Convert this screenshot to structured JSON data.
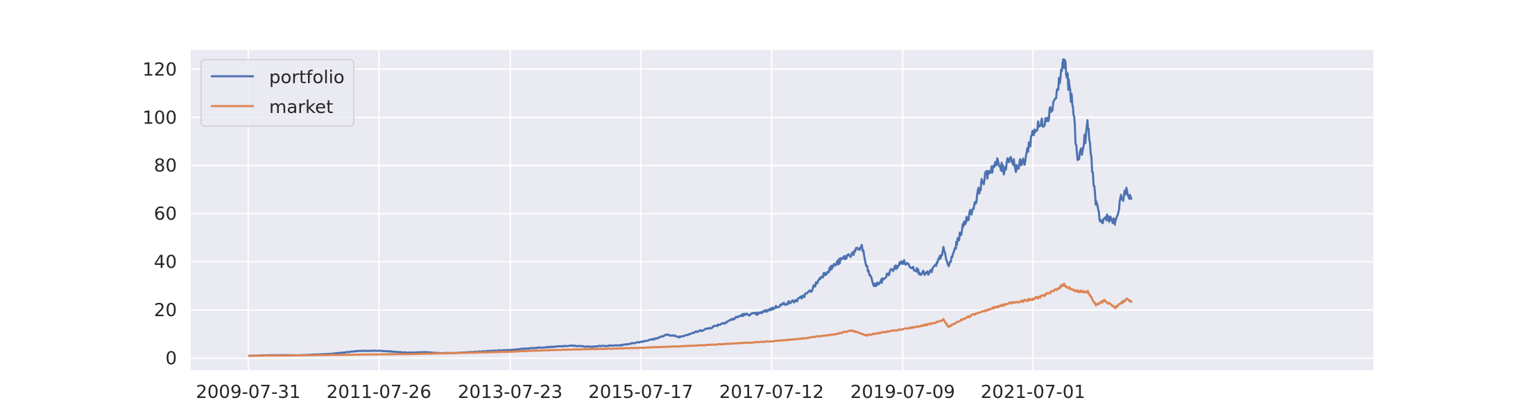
{
  "chart_data": {
    "type": "line",
    "title": "",
    "xlabel": "",
    "ylabel": "",
    "grid": true,
    "legend_position": "top-left",
    "ylim": [
      -5,
      128
    ],
    "xlim": [
      "2008-09-15",
      "2026-09-01"
    ],
    "x_ticks": [
      "2009-07-31",
      "2011-07-26",
      "2013-07-23",
      "2015-07-17",
      "2017-07-12",
      "2019-07-09",
      "2021-07-01"
    ],
    "y_ticks": [
      0,
      20,
      40,
      60,
      80,
      100,
      120
    ],
    "colors": {
      "background": "#eaeaf2",
      "grid": "#ffffff",
      "portfolio": "#4c72b0",
      "market": "#dd8452"
    },
    "series": [
      {
        "name": "portfolio",
        "color": "#4c72b0",
        "points": [
          [
            "2009-07-31",
            1.0
          ],
          [
            "2009-11-01",
            1.2
          ],
          [
            "2010-02-01",
            1.3
          ],
          [
            "2010-05-01",
            1.2
          ],
          [
            "2010-08-01",
            1.5
          ],
          [
            "2010-11-01",
            1.8
          ],
          [
            "2011-01-15",
            2.4
          ],
          [
            "2011-04-01",
            3.0
          ],
          [
            "2011-07-26",
            3.1
          ],
          [
            "2011-10-01",
            2.8
          ],
          [
            "2012-01-01",
            2.3
          ],
          [
            "2012-04-01",
            2.5
          ],
          [
            "2012-07-01",
            2.1
          ],
          [
            "2012-10-01",
            2.2
          ],
          [
            "2013-01-01",
            2.6
          ],
          [
            "2013-04-01",
            3.0
          ],
          [
            "2013-07-23",
            3.4
          ],
          [
            "2013-10-01",
            3.9
          ],
          [
            "2014-01-01",
            4.4
          ],
          [
            "2014-04-01",
            4.8
          ],
          [
            "2014-07-01",
            5.2
          ],
          [
            "2014-10-01",
            4.8
          ],
          [
            "2015-01-01",
            5.1
          ],
          [
            "2015-04-01",
            5.4
          ],
          [
            "2015-07-17",
            6.8
          ],
          [
            "2015-10-01",
            8.0
          ],
          [
            "2015-12-15",
            9.8
          ],
          [
            "2016-02-15",
            8.8
          ],
          [
            "2016-05-01",
            10.5
          ],
          [
            "2016-08-01",
            12.5
          ],
          [
            "2016-11-01",
            15.0
          ],
          [
            "2017-02-01",
            18.0
          ],
          [
            "2017-05-01",
            18.5
          ],
          [
            "2017-07-12",
            20.5
          ],
          [
            "2017-09-15",
            22.5
          ],
          [
            "2017-12-01",
            24.0
          ],
          [
            "2018-02-15",
            28.0
          ],
          [
            "2018-04-15",
            34.0
          ],
          [
            "2018-06-15",
            38.0
          ],
          [
            "2018-08-15",
            41.5
          ],
          [
            "2018-10-15",
            44.0
          ],
          [
            "2018-11-25",
            46.5
          ],
          [
            "2018-12-20",
            38.0
          ],
          [
            "2019-02-01",
            30.0
          ],
          [
            "2019-03-15",
            32.0
          ],
          [
            "2019-05-01",
            36.0
          ],
          [
            "2019-07-09",
            40.0
          ],
          [
            "2019-09-01",
            38.0
          ],
          [
            "2019-10-15",
            35.5
          ],
          [
            "2019-12-01",
            35.0
          ],
          [
            "2020-01-15",
            39.0
          ],
          [
            "2020-02-20",
            45.0
          ],
          [
            "2020-03-20",
            38.0
          ],
          [
            "2020-05-01",
            47.0
          ],
          [
            "2020-06-15",
            56.0
          ],
          [
            "2020-08-01",
            62.0
          ],
          [
            "2020-09-15",
            72.0
          ],
          [
            "2020-11-01",
            78.0
          ],
          [
            "2020-12-15",
            81.0
          ],
          [
            "2021-01-20",
            78.0
          ],
          [
            "2021-02-20",
            84.0
          ],
          [
            "2021-04-01",
            79.0
          ],
          [
            "2021-05-15",
            82.0
          ],
          [
            "2021-07-01",
            94.0
          ],
          [
            "2021-08-15",
            97.0
          ],
          [
            "2021-10-01",
            102.0
          ],
          [
            "2021-11-10",
            110.0
          ],
          [
            "2021-12-20",
            124.0
          ],
          [
            "2022-01-15",
            113.0
          ],
          [
            "2022-02-10",
            103.0
          ],
          [
            "2022-03-01",
            84.0
          ],
          [
            "2022-04-01",
            86.0
          ],
          [
            "2022-05-01",
            97.0
          ],
          [
            "2022-06-15",
            64.0
          ],
          [
            "2022-07-15",
            56.0
          ],
          [
            "2022-08-15",
            59.0
          ],
          [
            "2022-10-01",
            56.0
          ],
          [
            "2022-11-01",
            66.0
          ],
          [
            "2022-12-01",
            69.0
          ],
          [
            "2023-01-01",
            66.0
          ]
        ]
      },
      {
        "name": "market",
        "color": "#dd8452",
        "points": [
          [
            "2009-07-31",
            1.0
          ],
          [
            "2010-01-01",
            1.1
          ],
          [
            "2010-07-01",
            1.2
          ],
          [
            "2011-01-01",
            1.4
          ],
          [
            "2011-07-26",
            1.6
          ],
          [
            "2012-01-01",
            1.7
          ],
          [
            "2012-07-01",
            2.0
          ],
          [
            "2013-01-01",
            2.3
          ],
          [
            "2013-07-23",
            2.7
          ],
          [
            "2014-01-01",
            3.2
          ],
          [
            "2014-07-01",
            3.6
          ],
          [
            "2015-01-01",
            3.9
          ],
          [
            "2015-07-17",
            4.3
          ],
          [
            "2016-01-01",
            4.8
          ],
          [
            "2016-07-01",
            5.4
          ],
          [
            "2017-01-01",
            6.2
          ],
          [
            "2017-07-12",
            7.0
          ],
          [
            "2018-01-01",
            8.2
          ],
          [
            "2018-07-01",
            10.0
          ],
          [
            "2018-10-01",
            11.5
          ],
          [
            "2018-12-20",
            9.5
          ],
          [
            "2019-03-01",
            10.5
          ],
          [
            "2019-07-09",
            12.0
          ],
          [
            "2020-01-01",
            14.5
          ],
          [
            "2020-02-20",
            16.0
          ],
          [
            "2020-03-20",
            13.0
          ],
          [
            "2020-06-01",
            16.0
          ],
          [
            "2020-09-01",
            19.0
          ],
          [
            "2020-12-01",
            21.0
          ],
          [
            "2021-03-01",
            23.0
          ],
          [
            "2021-07-01",
            24.5
          ],
          [
            "2021-10-01",
            27.0
          ],
          [
            "2021-12-20",
            30.5
          ],
          [
            "2022-02-15",
            28.0
          ],
          [
            "2022-05-01",
            27.5
          ],
          [
            "2022-06-15",
            22.0
          ],
          [
            "2022-08-01",
            24.0
          ],
          [
            "2022-10-01",
            21.0
          ],
          [
            "2022-12-01",
            24.5
          ],
          [
            "2023-01-01",
            23.5
          ]
        ]
      }
    ]
  }
}
